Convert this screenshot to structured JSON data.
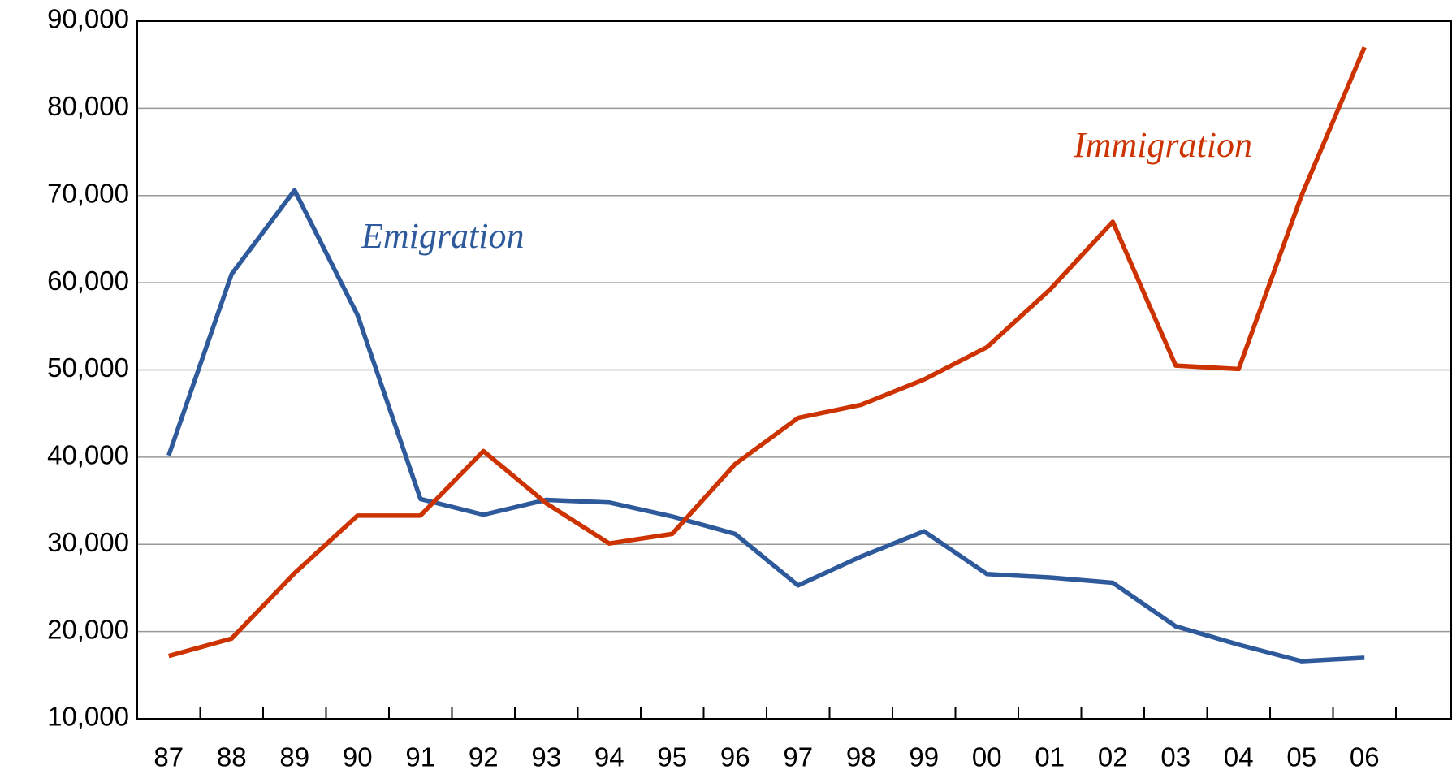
{
  "chart_data": {
    "type": "line",
    "categories": [
      "87",
      "88",
      "89",
      "90",
      "91",
      "92",
      "93",
      "94",
      "95",
      "96",
      "97",
      "98",
      "99",
      "00",
      "01",
      "02",
      "03",
      "04",
      "05",
      "06"
    ],
    "series": [
      {
        "name": "Emigration",
        "color": "#2e5a9c",
        "values": [
          40200,
          61000,
          70600,
          56300,
          35200,
          33400,
          35100,
          34800,
          33200,
          31200,
          25300,
          28600,
          31500,
          26600,
          26200,
          25600,
          20600,
          18500,
          16600,
          17000
        ]
      },
      {
        "name": "Immigration",
        "color": "#cc3300",
        "values": [
          17200,
          19200,
          26700,
          33300,
          33300,
          40700,
          34700,
          30100,
          31200,
          39200,
          44500,
          46000,
          48900,
          52600,
          59200,
          67000,
          50500,
          50100,
          70000,
          87000
        ]
      }
    ],
    "ylim": [
      10000,
      90000
    ],
    "yticks": [
      {
        "value": 10000,
        "label": "10,000"
      },
      {
        "value": 20000,
        "label": "20,000"
      },
      {
        "value": 30000,
        "label": "30,000"
      },
      {
        "value": 40000,
        "label": "40,000"
      },
      {
        "value": 50000,
        "label": "50,000"
      },
      {
        "value": 60000,
        "label": "60,000"
      },
      {
        "value": 70000,
        "label": "70,000"
      },
      {
        "value": 80000,
        "label": "80,000"
      },
      {
        "value": 90000,
        "label": "90,000"
      }
    ],
    "grid": true
  }
}
